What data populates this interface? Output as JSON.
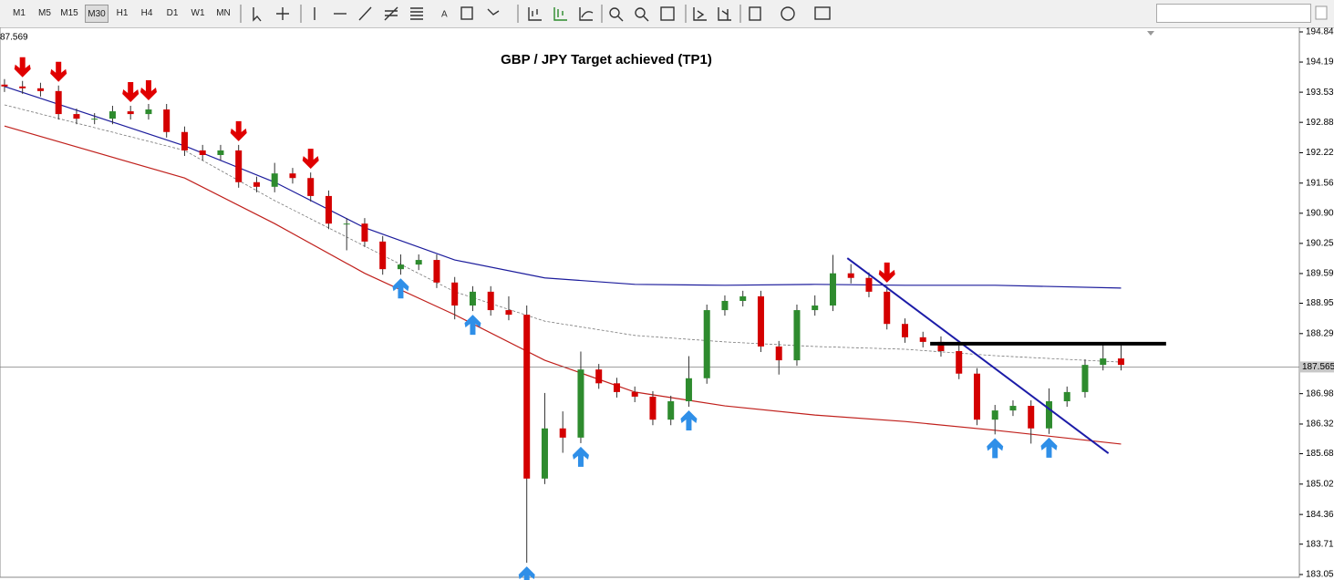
{
  "toolbar": {
    "timeframes": [
      "M1",
      "M5",
      "M15",
      "M30",
      "H1",
      "H4",
      "D1",
      "W1",
      "MN"
    ]
  },
  "chart_data": {
    "type": "candlestick",
    "title": "GBP / JPY Target achieved (TP1)",
    "top_left_label": "87.569",
    "up_color": "#2e8b2e",
    "down_color": "#d40000",
    "open": [
      193.7,
      193.66,
      193.62,
      193.56,
      193.06,
      192.96,
      192.96,
      193.12,
      193.06,
      193.16,
      192.67,
      192.27,
      192.17,
      192.27,
      191.58,
      191.48,
      191.77,
      191.67,
      191.28,
      190.68,
      190.68,
      190.29,
      189.69,
      189.79,
      189.89,
      189.4,
      188.9,
      189.2,
      188.8,
      188.7,
      185.14,
      186.23,
      186.03,
      187.51,
      187.21,
      187.02,
      186.92,
      186.42,
      186.82,
      187.32,
      188.8,
      189.0,
      189.1,
      188.01,
      187.71,
      188.8,
      188.9,
      189.6,
      189.5,
      189.2,
      188.5,
      188.21,
      188.11,
      187.91,
      187.42,
      186.42,
      186.62,
      186.72,
      186.23,
      186.82,
      187.02,
      187.61,
      187.75
    ],
    "high": [
      193.82,
      193.78,
      193.74,
      193.68,
      193.18,
      193.08,
      193.24,
      193.24,
      193.28,
      193.28,
      192.79,
      192.39,
      192.39,
      192.39,
      191.7,
      192.0,
      191.89,
      191.79,
      191.4,
      190.8,
      190.8,
      190.41,
      190.01,
      190.01,
      190.01,
      189.52,
      189.32,
      189.32,
      189.1,
      188.9,
      187.0,
      186.6,
      187.9,
      187.63,
      187.33,
      187.14,
      187.04,
      186.94,
      187.8,
      188.92,
      189.12,
      189.22,
      189.22,
      188.13,
      188.92,
      189.12,
      190.0,
      189.8,
      189.62,
      189.32,
      188.62,
      188.33,
      188.23,
      188.03,
      187.54,
      186.74,
      186.84,
      186.84,
      187.1,
      187.14,
      187.73,
      188.1,
      188.05
    ],
    "low": [
      193.54,
      193.5,
      193.44,
      192.94,
      192.84,
      192.84,
      192.84,
      192.94,
      192.94,
      192.55,
      192.15,
      192.05,
      192.05,
      191.46,
      191.36,
      191.36,
      191.55,
      191.16,
      190.56,
      190.1,
      190.17,
      189.57,
      189.57,
      189.67,
      189.28,
      188.6,
      188.78,
      188.68,
      188.58,
      183.31,
      185.02,
      185.7,
      185.91,
      187.09,
      186.9,
      186.8,
      186.3,
      186.3,
      186.7,
      187.2,
      188.68,
      188.88,
      187.89,
      187.4,
      187.59,
      188.68,
      188.78,
      189.38,
      189.08,
      188.38,
      188.09,
      187.99,
      187.79,
      187.3,
      186.3,
      186.1,
      186.5,
      185.9,
      186.11,
      186.7,
      186.9,
      187.49,
      187.49
    ],
    "close": [
      193.66,
      193.62,
      193.56,
      193.06,
      192.96,
      192.96,
      193.12,
      193.06,
      193.16,
      192.67,
      192.27,
      192.17,
      192.27,
      191.58,
      191.48,
      191.77,
      191.67,
      191.28,
      190.68,
      190.68,
      190.29,
      189.69,
      189.79,
      189.89,
      189.4,
      188.9,
      189.2,
      188.8,
      188.7,
      185.14,
      186.23,
      186.03,
      187.51,
      187.21,
      187.02,
      186.92,
      186.42,
      186.82,
      187.32,
      188.8,
      189.0,
      189.1,
      188.01,
      187.71,
      188.8,
      188.9,
      189.6,
      189.5,
      189.2,
      188.5,
      188.21,
      188.11,
      187.91,
      187.42,
      186.42,
      186.62,
      186.72,
      186.23,
      186.82,
      187.02,
      187.61,
      187.75,
      187.61
    ],
    "xlim": [
      -0.25,
      71.9
    ],
    "ylim": [
      183.055,
      194.845
    ],
    "yticks": [
      194.845,
      {
        "value": 194.19,
        "label": "194.190"
      },
      193.535,
      {
        "value": 192.88,
        "label": "192.880"
      },
      {
        "value": 192.22,
        "label": "192.220"
      },
      {
        "value": 191.56,
        "label": "191.560"
      },
      190.905,
      {
        "value": 190.25,
        "label": "190.250"
      },
      189.595,
      {
        "value": 188.95,
        "label": "188.950"
      },
      {
        "value": 188.29,
        "label": "188.290"
      },
      186.985,
      186.325,
      {
        "value": 185.68,
        "label": "185.680"
      },
      {
        "value": 185.02,
        "label": "185.020"
      },
      {
        "value": 184.36,
        "label": "184.360"
      },
      183.715,
      183.055
    ],
    "current_price": 187.565,
    "indicators": [
      {
        "color": "#1c1c9c",
        "style": "solid",
        "x": [
          0,
          10,
          15,
          20,
          25,
          30,
          35,
          40,
          45,
          50,
          55,
          62
        ],
        "values": [
          193.66,
          192.37,
          191.58,
          190.59,
          189.89,
          189.5,
          189.36,
          189.34,
          189.36,
          189.34,
          189.34,
          189.28
        ]
      },
      {
        "color": "#c0201c",
        "style": "solid",
        "x": [
          0,
          10,
          15,
          20,
          25,
          30,
          35,
          40,
          45,
          50,
          55,
          62
        ],
        "values": [
          192.8,
          191.67,
          190.68,
          189.6,
          188.7,
          187.71,
          187.02,
          186.72,
          186.52,
          186.38,
          186.19,
          185.89
        ]
      },
      {
        "color": "#777777",
        "style": "dashed",
        "x": [
          0,
          10,
          15,
          20,
          25,
          30,
          35,
          40,
          45,
          50,
          55,
          62
        ],
        "values": [
          193.26,
          192.27,
          191.18,
          190.19,
          189.2,
          188.56,
          188.25,
          188.11,
          188.01,
          187.95,
          187.81,
          187.67
        ]
      }
    ],
    "signals": {
      "sell": [
        1,
        3,
        7,
        8,
        13,
        17,
        49
      ],
      "buy": [
        22,
        26,
        29,
        32,
        38,
        55,
        58
      ],
      "sell_color": "#e00000",
      "buy_color": "#2f8fe8"
    },
    "trendline": {
      "color": "#1c1ca8",
      "x": [
        46.8,
        61.3
      ],
      "values": [
        189.93,
        185.69
      ]
    },
    "level": {
      "color": "#000000",
      "x": [
        51.4,
        64.5
      ],
      "value": 188.07
    }
  }
}
